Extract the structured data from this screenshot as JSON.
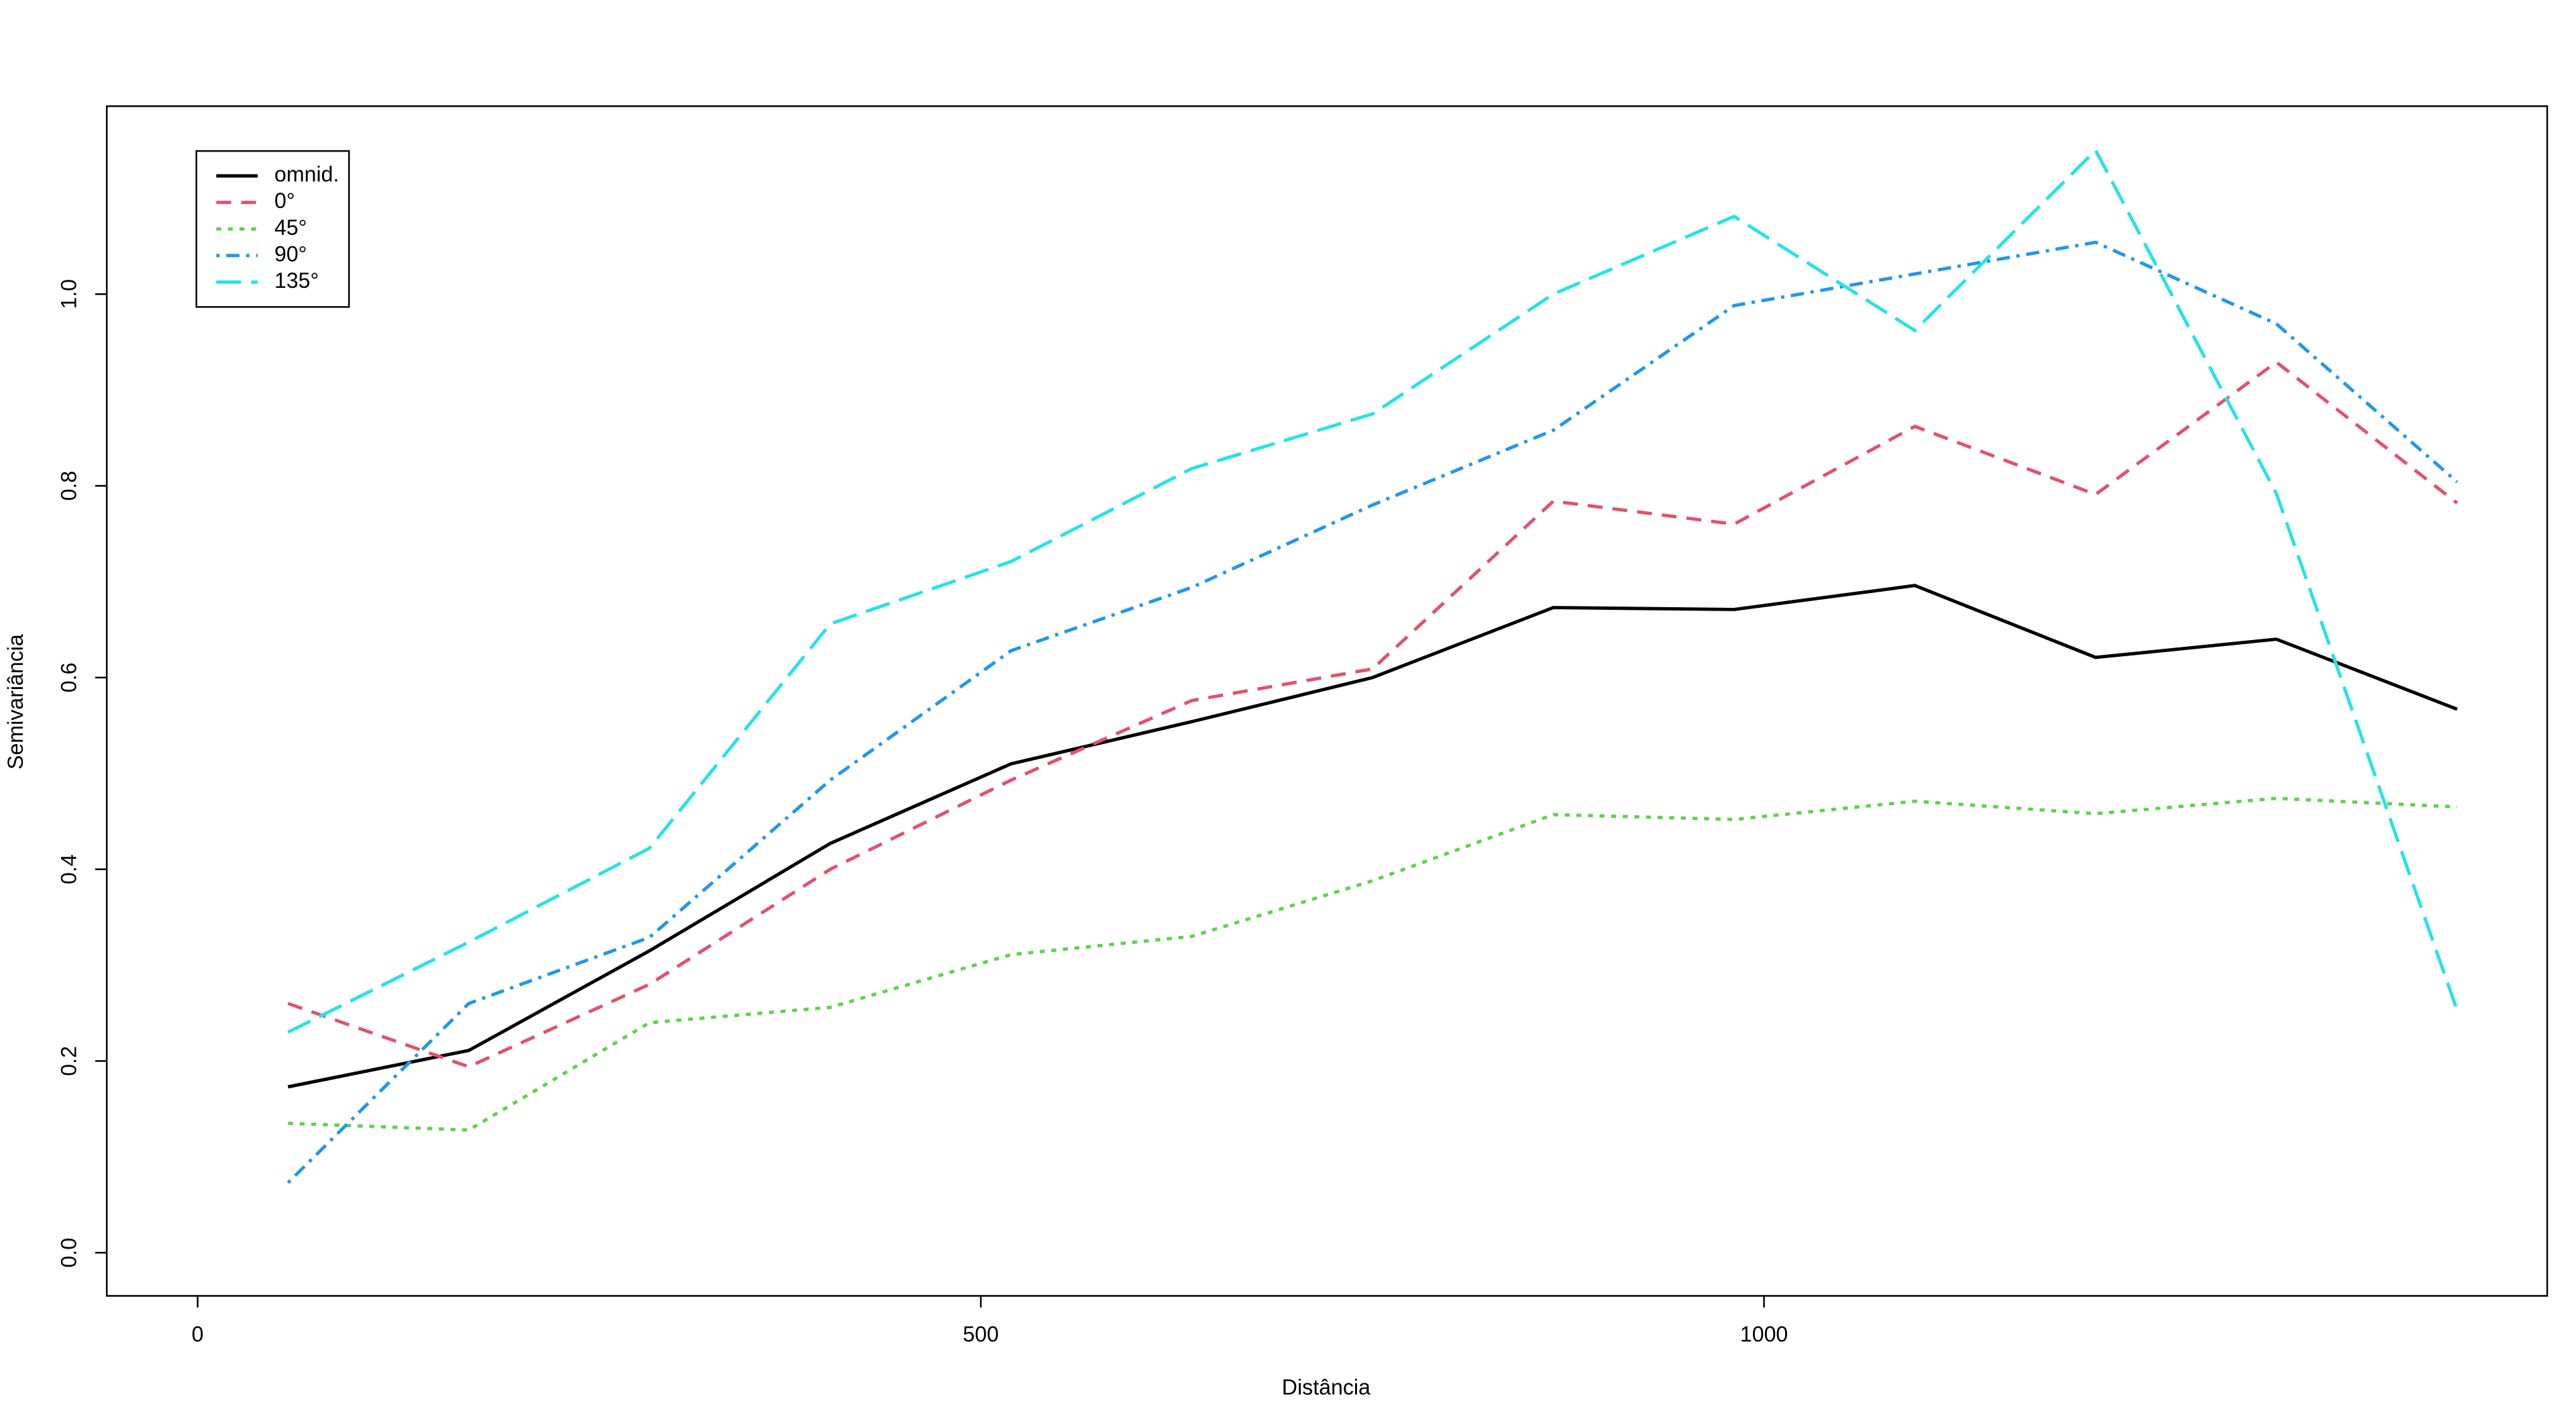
{
  "chart_data": {
    "type": "line",
    "x_label": "Distância",
    "y_label": "Semivariância",
    "x": [
      57.7,
      173.1,
      288.5,
      403.9,
      519.3,
      634.7,
      750.1,
      865.5,
      980.9,
      1096.3,
      1211.7,
      1327.1,
      1442.5
    ],
    "series": [
      {
        "name": "omnid.",
        "color": "#000000",
        "values": [
          0.173,
          0.211,
          0.315,
          0.427,
          0.51,
          0.554,
          0.6,
          0.673,
          0.671,
          0.696,
          0.621,
          0.64,
          0.567
        ]
      },
      {
        "name": "0°",
        "color": "#DF536B",
        "values": [
          0.26,
          0.194,
          0.28,
          0.4,
          0.493,
          0.576,
          0.609,
          0.784,
          0.76,
          0.862,
          0.791,
          0.929,
          0.782
        ]
      },
      {
        "name": "45°",
        "color": "#61D04F",
        "values": [
          0.135,
          0.128,
          0.24,
          0.256,
          0.311,
          0.33,
          0.388,
          0.457,
          0.452,
          0.471,
          0.458,
          0.474,
          0.465
        ]
      },
      {
        "name": "90°",
        "color": "#2297E6",
        "values": [
          0.073,
          0.26,
          0.329,
          0.493,
          0.628,
          0.694,
          0.78,
          0.858,
          0.988,
          1.021,
          1.054,
          0.969,
          0.804
        ]
      },
      {
        "name": "135°",
        "color": "#28E2E5",
        "values": [
          0.23,
          0.324,
          0.422,
          0.656,
          0.721,
          0.818,
          0.875,
          1.0,
          1.081,
          0.962,
          1.15,
          0.792,
          0.253
        ]
      }
    ],
    "xlim": [
      -58,
      1500
    ],
    "ylim": [
      -0.045,
      1.196
    ],
    "xticks": [
      0,
      500,
      1000
    ],
    "yticks": [
      {
        "value": 0,
        "label": "0.0"
      },
      0.2,
      0.4,
      0.6,
      0.8,
      {
        "value": 1,
        "label": "1.0"
      }
    ],
    "legend": "top-left"
  }
}
